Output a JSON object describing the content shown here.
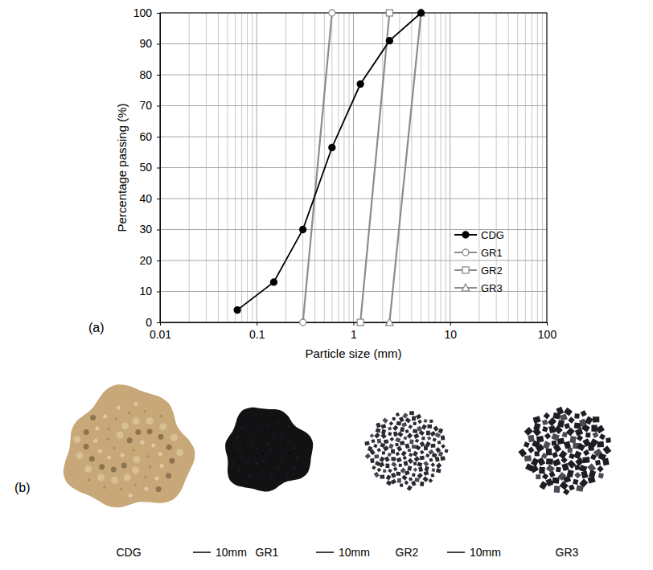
{
  "chart_data": {
    "type": "line",
    "xlabel": "Particle size (mm)",
    "ylabel": "Percentage passing (%)",
    "log": "x",
    "grid": true,
    "legend": "lower right",
    "xlim": [
      0.01,
      100
    ],
    "ylim": [
      0,
      100
    ],
    "xticks": [
      0.01,
      0.1,
      1,
      10,
      100
    ],
    "yticks": [
      0,
      10,
      20,
      30,
      40,
      50,
      60,
      70,
      80,
      90,
      100
    ],
    "xgrid_minor": [
      0.02,
      0.03,
      0.04,
      0.05,
      0.06,
      0.07,
      0.08,
      0.09,
      0.2,
      0.3,
      0.4,
      0.5,
      0.6,
      0.7,
      0.8,
      0.9,
      2,
      3,
      4,
      5,
      6,
      7,
      8,
      9,
      20,
      30,
      40,
      50,
      60,
      70,
      80,
      90
    ],
    "series": [
      {
        "name": "CDG",
        "color": "#000000",
        "marker": "circle",
        "line_style": "solid",
        "x": [
          0.063,
          0.15,
          0.3,
          0.6,
          1.18,
          2.36,
          5
        ],
        "values": [
          4,
          13,
          30,
          56.5,
          77,
          91,
          100
        ]
      },
      {
        "name": "GR1",
        "color": "#8c8c8c",
        "marker": "open_circle",
        "line_style": "solid",
        "x": [
          0.3,
          0.6
        ],
        "values": [
          0,
          100
        ]
      },
      {
        "name": "GR2",
        "color": "#8c8c8c",
        "marker": "open_square",
        "line_style": "solid",
        "x": [
          1.18,
          2.36
        ],
        "values": [
          0,
          100
        ]
      },
      {
        "name": "GR3",
        "color": "#8c8c8c",
        "marker": "open_triangle",
        "line_style": "solid",
        "x": [
          2.36,
          5
        ],
        "values": [
          0,
          100
        ]
      }
    ]
  },
  "panel_labels": [
    "(a)",
    "(b)"
  ],
  "samples": [
    {
      "label": "CDG",
      "color": "#c8a878"
    },
    {
      "label": "GR1",
      "color": "#121214"
    },
    {
      "label": "GR2",
      "color": "#2a2b30"
    },
    {
      "label": "GR3",
      "color": "#1d1e24"
    }
  ],
  "scale_bars": [
    "10mm",
    "10mm",
    "10mm"
  ]
}
